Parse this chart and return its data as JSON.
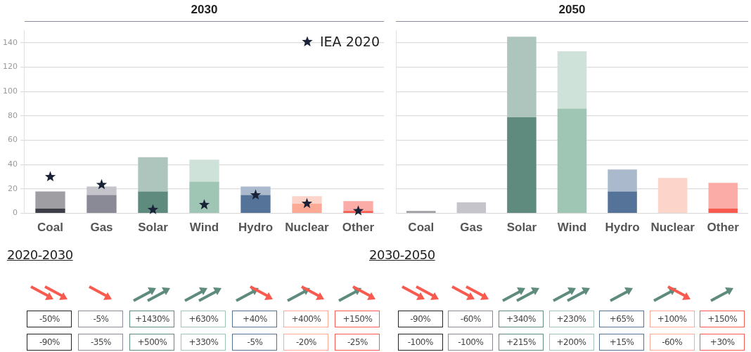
{
  "chart_data": [
    {
      "type": "bar",
      "title": "2030",
      "stacked": true,
      "grid": "y",
      "legend": "top right",
      "categories": [
        "Coal",
        "Gas",
        "Solar",
        "Wind",
        "Hydro",
        "Nuclear",
        "Other"
      ],
      "ylim": [
        0,
        150
      ],
      "yticks": [
        0,
        20,
        40,
        60,
        80,
        100,
        120,
        140
      ],
      "series": [
        {
          "colors": [
            "#3d3d47",
            "#8a8a96",
            "#5e8b7e",
            "#9fc6b5",
            "#557399",
            "#fcaa96",
            "#f95a4f"
          ],
          "values": [
            4,
            15,
            18,
            26,
            15,
            8,
            2
          ]
        },
        {
          "colors": [
            "#9e9ea3",
            "#c4c4ca",
            "#aec5be",
            "#cfe2da",
            "#aab9cc",
            "#fdd4ca",
            "#fcaca7"
          ],
          "values": [
            14,
            7,
            28,
            18,
            7,
            6,
            8
          ]
        },
        {
          "type": "scatter",
          "name": "IEA 2020",
          "color": "#1a2238",
          "marker": "star",
          "x": [
            "Coal",
            "Gas",
            "Solar",
            "Wind",
            "Hydro",
            "Nuclear",
            "Other"
          ],
          "values": [
            30,
            23.5,
            3,
            7,
            15,
            8,
            2
          ]
        }
      ],
      "annotations": [
        "2020-2030",
        "-50%",
        "-5%",
        "+1430%",
        "+630%",
        "+40%",
        "+400%",
        "+150%",
        "-90%",
        "-35%",
        "+500%",
        "+330%",
        "-5%",
        "-20%",
        "-25%"
      ]
    },
    {
      "type": "bar",
      "title": "2050",
      "stacked": true,
      "grid": "y",
      "tick_labels": "x",
      "categories": [
        "Coal",
        "Gas",
        "Solar",
        "Wind",
        "Hydro",
        "Nuclear",
        "Other"
      ],
      "ylim": [
        0,
        150
      ],
      "yticks": [
        0,
        20,
        40,
        60,
        80,
        100,
        120,
        140
      ],
      "series": [
        {
          "colors": [
            "#3d3d47",
            "#8a8a96",
            "#5e8b7e",
            "#9fc6b5",
            "#557399",
            "#fcaa96",
            "#f95a4f"
          ],
          "values": [
            0,
            0,
            79,
            86,
            18,
            0,
            4
          ]
        },
        {
          "colors": [
            "#9e9ea3",
            "#c4c4ca",
            "#aec5be",
            "#cfe2da",
            "#aab9cc",
            "#fdd4ca",
            "#fcaca7"
          ],
          "values": [
            2,
            9,
            66,
            47,
            18,
            29,
            21
          ]
        }
      ],
      "annotations": [
        "2030-2050",
        "-90%",
        "-60%",
        "+340%",
        "+230%",
        "+65%",
        "+100%",
        "+150%",
        "-100%",
        "-100%",
        "+215%",
        "+200%",
        "+15%",
        "-60%",
        "+30%"
      ]
    }
  ]
}
